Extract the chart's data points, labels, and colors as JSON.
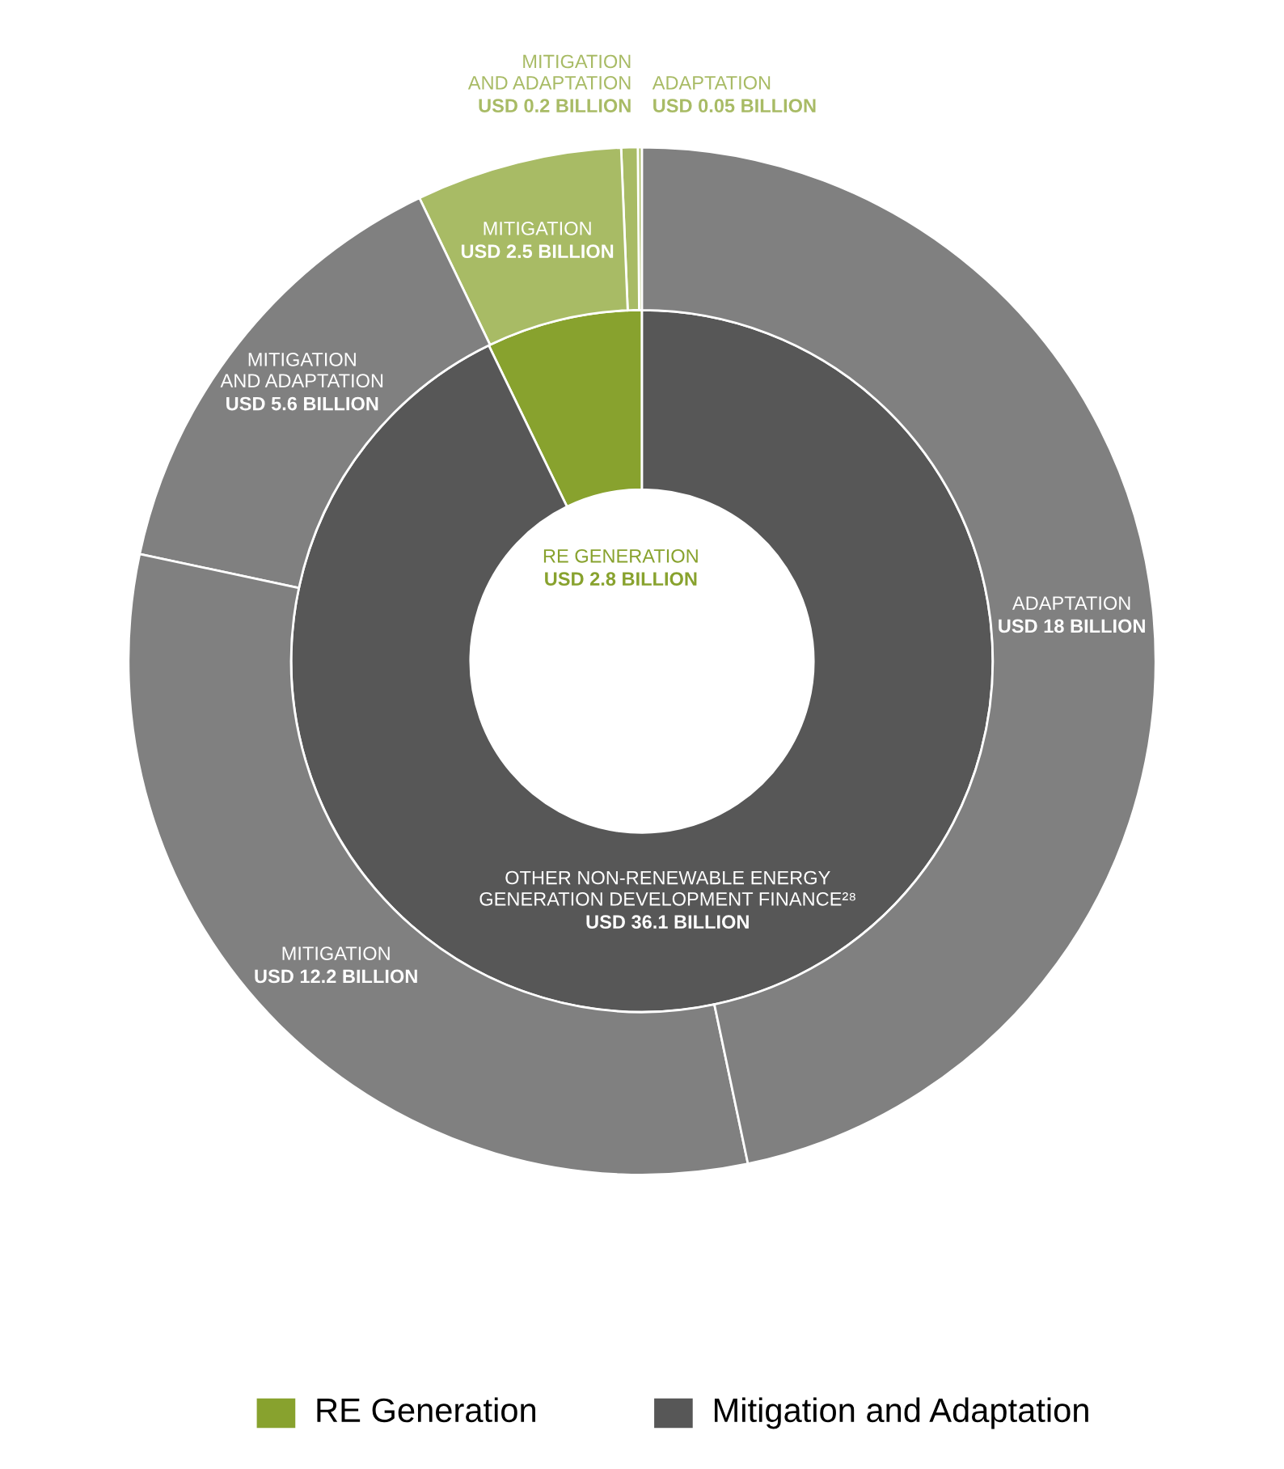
{
  "chart_data": {
    "type": "donut",
    "series": [
      {
        "values": [
          2.8,
          36.1
        ],
        "colors": [
          "#88a22e",
          "#575757"
        ],
        "value_labels": [
          "RE GENERATION\nUSD 2.8 BILLION",
          "OTHER NON-RENEWABLE ENERGY\nGENERATION DEVELOPMENT FINANCE²⁸\nUSD 36.1 BILLION"
        ]
      },
      {
        "values": [
          0.05,
          0.2,
          2.5,
          5.6,
          12.2,
          18
        ],
        "colors": [
          "#a8bb65",
          "#a8bb65",
          "#a8bb65",
          "#808080",
          "#808080",
          "#808080"
        ],
        "value_labels": [
          "ADAPTATION\nUSD 0.05 BILLION",
          "MITIGATION\nAND ADAPTATION\nUSD 0.2 BILLION",
          "MITIGATION\nUSD 2.5 BILLION",
          "MITIGATION\nAND ADAPTATION\nUSD 5.6 BILLION",
          "MITIGATION\nUSD 12.2 BILLION",
          "ADAPTATION\nUSD 18 BILLION"
        ]
      }
    ],
    "annotations": [
      "RE Generation",
      "Mitigation and Adaptation"
    ]
  }
}
